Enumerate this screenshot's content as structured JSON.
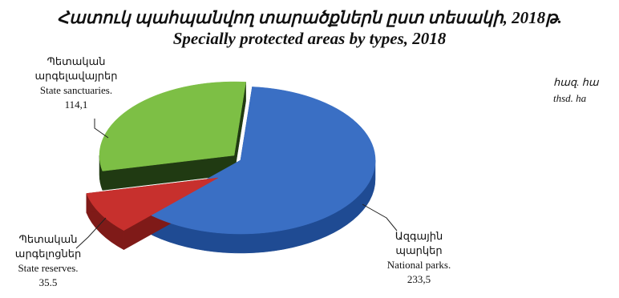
{
  "title_am": "Հատուկ պահպանվող տարածքներն ըստ տեսակի, 2018թ.",
  "title_en": "Specially protected areas by types, 2018",
  "unit_am": "հազ. հա",
  "unit_en": "thsd. ha",
  "chart_data": {
    "type": "pie",
    "title": "Specially protected areas by types, 2018",
    "unit": "thsd. ha",
    "style": "3d-exploded",
    "slices": [
      {
        "label_am": "Ազգային պարկեր",
        "label_am_1": "Ազգային",
        "label_am_2": "պարկեր",
        "label_en": "National parks.",
        "value_label": "233,5",
        "value": 233.5,
        "color": "#3A6FC4",
        "dark": "#1F4B93"
      },
      {
        "label_am": "Պետական արգելոցներ",
        "label_am_1": "Պետական",
        "label_am_2": "արգելոցներ",
        "label_en": "State reserves.",
        "value_label": "35.5",
        "value": 35.5,
        "color": "#C7302D",
        "dark": "#7F1A18"
      },
      {
        "label_am": "Պետական արգելավայրեր",
        "label_am_1": "Պետական",
        "label_am_2": "արգելավայրեր",
        "label_en": "State sanctuaries.",
        "value_label": "114,1",
        "value": 114.1,
        "color": "#7DBF45",
        "dark": "#203A12"
      }
    ]
  }
}
